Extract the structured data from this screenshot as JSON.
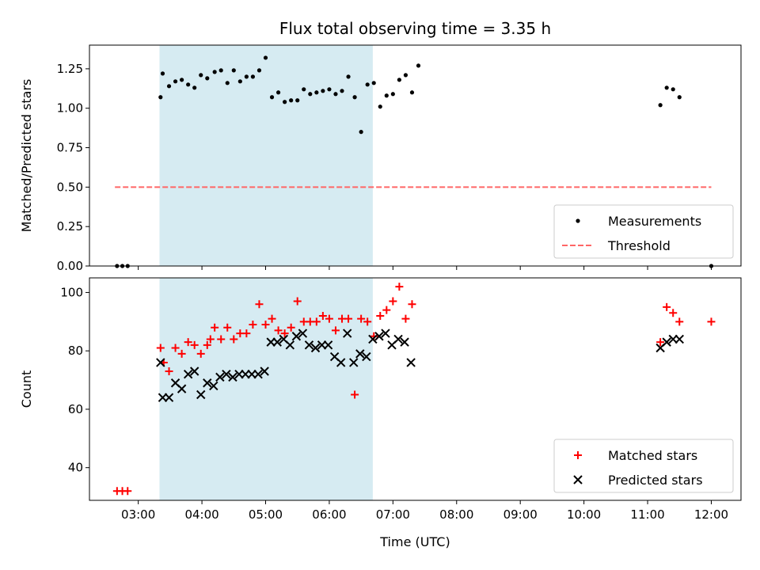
{
  "title": "Flux total observing time = 3.35 h",
  "xlabel": "Time (UTC)",
  "x_ticks": [
    "03:00",
    "04:00",
    "05:00",
    "06:00",
    "07:00",
    "08:00",
    "09:00",
    "10:00",
    "11:00",
    "12:00"
  ],
  "colors": {
    "span": "#add8e6",
    "matched": "#ff0000",
    "predicted": "#000000",
    "threshold": "#ff6666",
    "measurement": "#000000"
  },
  "chart_data": [
    {
      "type": "scatter",
      "ylabel": "Matched/Predicted stars",
      "xlim": [
        "02:14",
        "12:28"
      ],
      "ylim": [
        0,
        1.4
      ],
      "y_ticks": [
        "0.00",
        "0.25",
        "0.50",
        "0.75",
        "1.00",
        "1.25"
      ],
      "x_span": [
        "03:20",
        "06:41"
      ],
      "legend_position": "lower right",
      "series": [
        {
          "name": "Measurements",
          "kind": "scatter",
          "points": [
            [
              "02:40",
              0.0
            ],
            [
              "02:45",
              0.0
            ],
            [
              "02:50",
              0.0
            ],
            [
              "03:21",
              1.07
            ],
            [
              "03:23",
              1.22
            ],
            [
              "03:29",
              1.14
            ],
            [
              "03:35",
              1.17
            ],
            [
              "03:41",
              1.18
            ],
            [
              "03:47",
              1.15
            ],
            [
              "03:53",
              1.13
            ],
            [
              "03:59",
              1.21
            ],
            [
              "04:05",
              1.19
            ],
            [
              "04:12",
              1.23
            ],
            [
              "04:18",
              1.24
            ],
            [
              "04:24",
              1.16
            ],
            [
              "04:30",
              1.24
            ],
            [
              "04:36",
              1.17
            ],
            [
              "04:42",
              1.2
            ],
            [
              "04:48",
              1.2
            ],
            [
              "04:54",
              1.24
            ],
            [
              "05:00",
              1.32
            ],
            [
              "05:06",
              1.07
            ],
            [
              "05:12",
              1.1
            ],
            [
              "05:18",
              1.04
            ],
            [
              "05:24",
              1.05
            ],
            [
              "05:30",
              1.05
            ],
            [
              "05:36",
              1.12
            ],
            [
              "05:42",
              1.09
            ],
            [
              "05:48",
              1.1
            ],
            [
              "05:54",
              1.11
            ],
            [
              "06:00",
              1.12
            ],
            [
              "06:06",
              1.09
            ],
            [
              "06:12",
              1.11
            ],
            [
              "06:18",
              1.2
            ],
            [
              "06:24",
              1.07
            ],
            [
              "06:30",
              0.85
            ],
            [
              "06:36",
              1.15
            ],
            [
              "06:42",
              1.16
            ],
            [
              "06:48",
              1.01
            ],
            [
              "06:54",
              1.08
            ],
            [
              "07:00",
              1.09
            ],
            [
              "07:06",
              1.18
            ],
            [
              "07:12",
              1.21
            ],
            [
              "07:18",
              1.1
            ],
            [
              "07:24",
              1.27
            ],
            [
              "11:12",
              1.02
            ],
            [
              "11:18",
              1.13
            ],
            [
              "11:24",
              1.12
            ],
            [
              "11:30",
              1.07
            ],
            [
              "12:00",
              0.0
            ]
          ]
        },
        {
          "name": "Threshold",
          "kind": "line",
          "style": "dashed",
          "points": [
            [
              "02:38",
              0.5
            ],
            [
              "12:00",
              0.5
            ]
          ]
        }
      ]
    },
    {
      "type": "scatter",
      "ylabel": "Count",
      "xlim": [
        "02:14",
        "12:28"
      ],
      "ylim": [
        28.8,
        105
      ],
      "y_ticks": [
        "40",
        "60",
        "80",
        "100"
      ],
      "x_span": [
        "03:20",
        "06:41"
      ],
      "legend_position": "lower right",
      "series": [
        {
          "name": "Matched stars",
          "marker": "plus",
          "points": [
            [
              "02:40",
              32
            ],
            [
              "02:45",
              32
            ],
            [
              "02:50",
              32
            ],
            [
              "03:21",
              81
            ],
            [
              "03:24",
              76
            ],
            [
              "03:29",
              73
            ],
            [
              "03:35",
              81
            ],
            [
              "03:41",
              79
            ],
            [
              "03:47",
              83
            ],
            [
              "03:53",
              82
            ],
            [
              "03:59",
              79
            ],
            [
              "04:05",
              82
            ],
            [
              "04:08",
              84
            ],
            [
              "04:12",
              88
            ],
            [
              "04:18",
              84
            ],
            [
              "04:24",
              88
            ],
            [
              "04:30",
              84
            ],
            [
              "04:36",
              86
            ],
            [
              "04:42",
              86
            ],
            [
              "04:48",
              89
            ],
            [
              "04:54",
              96
            ],
            [
              "05:00",
              89
            ],
            [
              "05:06",
              91
            ],
            [
              "05:12",
              87
            ],
            [
              "05:18",
              86
            ],
            [
              "05:24",
              88
            ],
            [
              "05:30",
              97
            ],
            [
              "05:36",
              90
            ],
            [
              "05:42",
              90
            ],
            [
              "05:48",
              90
            ],
            [
              "05:54",
              92
            ],
            [
              "06:00",
              91
            ],
            [
              "06:06",
              87
            ],
            [
              "06:12",
              91
            ],
            [
              "06:18",
              91
            ],
            [
              "06:24",
              65
            ],
            [
              "06:30",
              91
            ],
            [
              "06:36",
              90
            ],
            [
              "06:42",
              85
            ],
            [
              "06:48",
              92
            ],
            [
              "06:54",
              94
            ],
            [
              "07:00",
              97
            ],
            [
              "07:06",
              102
            ],
            [
              "07:12",
              91
            ],
            [
              "07:18",
              96
            ],
            [
              "11:12",
              83
            ],
            [
              "11:18",
              95
            ],
            [
              "11:24",
              93
            ],
            [
              "11:30",
              90
            ],
            [
              "12:00",
              90
            ]
          ]
        },
        {
          "name": "Predicted stars",
          "marker": "x",
          "points": [
            [
              "03:21",
              76
            ],
            [
              "03:23",
              64
            ],
            [
              "03:29",
              64
            ],
            [
              "03:35",
              69
            ],
            [
              "03:41",
              67
            ],
            [
              "03:47",
              72
            ],
            [
              "03:53",
              73
            ],
            [
              "03:59",
              65
            ],
            [
              "04:05",
              69
            ],
            [
              "04:11",
              68
            ],
            [
              "04:17",
              71
            ],
            [
              "04:23",
              72
            ],
            [
              "04:29",
              71
            ],
            [
              "04:35",
              72
            ],
            [
              "04:41",
              72
            ],
            [
              "04:47",
              72
            ],
            [
              "04:53",
              72
            ],
            [
              "04:59",
              73
            ],
            [
              "05:05",
              83
            ],
            [
              "05:11",
              83
            ],
            [
              "05:17",
              84
            ],
            [
              "05:23",
              82
            ],
            [
              "05:29",
              85
            ],
            [
              "05:35",
              86
            ],
            [
              "05:41",
              82
            ],
            [
              "05:47",
              81
            ],
            [
              "05:53",
              82
            ],
            [
              "05:59",
              82
            ],
            [
              "06:05",
              78
            ],
            [
              "06:11",
              76
            ],
            [
              "06:17",
              86
            ],
            [
              "06:23",
              76
            ],
            [
              "06:29",
              79
            ],
            [
              "06:35",
              78
            ],
            [
              "06:41",
              84
            ],
            [
              "06:47",
              85
            ],
            [
              "06:53",
              86
            ],
            [
              "06:59",
              82
            ],
            [
              "07:05",
              84
            ],
            [
              "07:11",
              83
            ],
            [
              "07:17",
              76
            ],
            [
              "11:12",
              81
            ],
            [
              "11:18",
              83
            ],
            [
              "11:24",
              84
            ],
            [
              "11:30",
              84
            ]
          ]
        }
      ]
    }
  ]
}
